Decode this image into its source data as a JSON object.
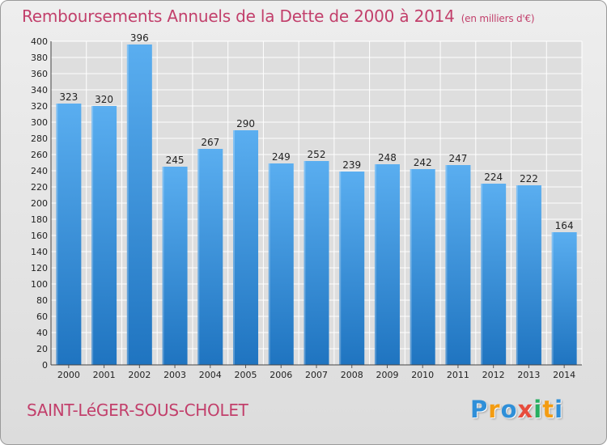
{
  "header": {
    "title": "Remboursements Annuels de la Dette de 2000 à 2014",
    "unit": "(en milliers d'€)"
  },
  "footer": {
    "commune": "SAINT-LéGER-SOUS-CHOLET",
    "brand_letters": [
      "P",
      "r",
      "o",
      "x",
      "i",
      "t",
      "i"
    ],
    "brand_colors": [
      "#2f8fd8",
      "#f39c12",
      "#2f8fd8",
      "#e74c3c",
      "#27ae60",
      "#f39c12",
      "#2f8fd8"
    ]
  },
  "colors": {
    "title": "#c23f6b",
    "bar_top": "#5aaef0",
    "bar_bottom": "#1f74c0",
    "grid": "#ffffff",
    "axis_text": "#222222"
  },
  "chart_data": {
    "type": "bar",
    "categories": [
      "2000",
      "2001",
      "2002",
      "2003",
      "2004",
      "2005",
      "2006",
      "2007",
      "2008",
      "2009",
      "2010",
      "2011",
      "2012",
      "2013",
      "2014"
    ],
    "values": [
      323,
      320,
      396,
      245,
      267,
      290,
      249,
      252,
      239,
      248,
      242,
      247,
      224,
      222,
      164
    ],
    "ylim": [
      0,
      400
    ],
    "ytick_step": 20,
    "grid": true,
    "data_labels": true
  }
}
